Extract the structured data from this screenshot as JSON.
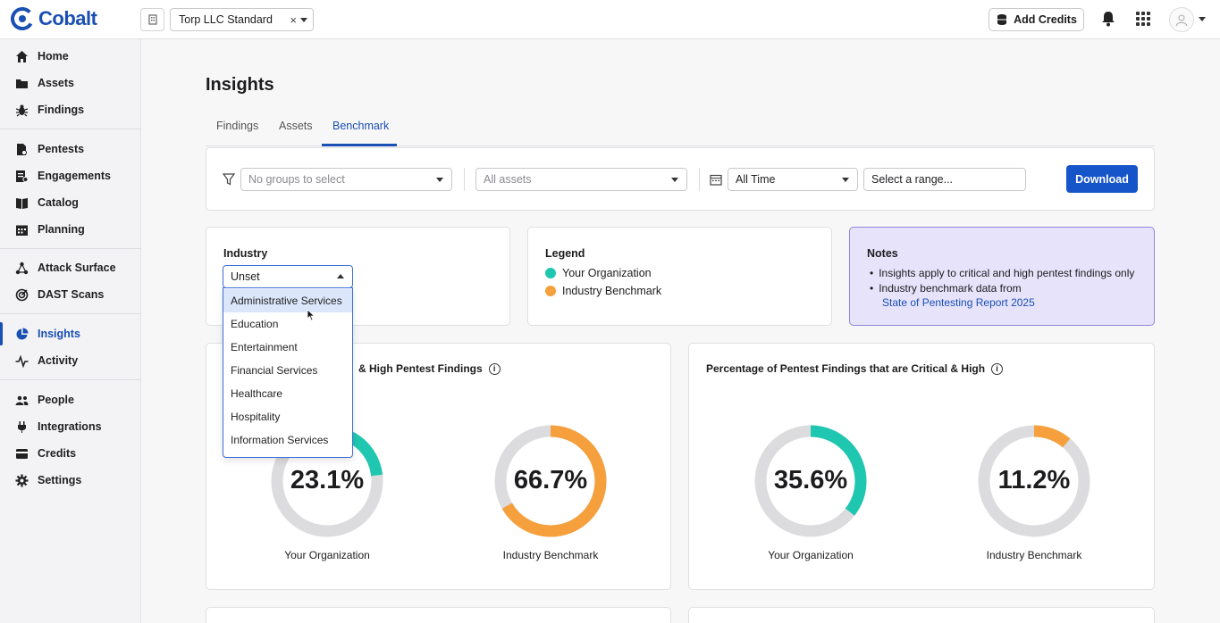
{
  "app": {
    "name": "Cobalt"
  },
  "topbar": {
    "org_selector": {
      "value": "Torp LLC Standard",
      "clear_glyph": "×"
    },
    "add_credits_label": "Add Credits"
  },
  "sidebar": {
    "groups": [
      [
        {
          "label": "Home",
          "icon": "home-icon"
        },
        {
          "label": "Assets",
          "icon": "folder-icon"
        },
        {
          "label": "Findings",
          "icon": "bug-icon"
        }
      ],
      [
        {
          "label": "Pentests",
          "icon": "pentest-icon"
        },
        {
          "label": "Engagements",
          "icon": "engagement-icon"
        },
        {
          "label": "Catalog",
          "icon": "book-icon"
        },
        {
          "label": "Planning",
          "icon": "calendar-icon"
        }
      ],
      [
        {
          "label": "Attack Surface",
          "icon": "network-icon"
        },
        {
          "label": "DAST Scans",
          "icon": "radar-icon"
        }
      ],
      [
        {
          "label": "Insights",
          "icon": "pie-chart-icon",
          "active": true
        },
        {
          "label": "Activity",
          "icon": "pulse-icon"
        }
      ],
      [
        {
          "label": "People",
          "icon": "people-icon"
        },
        {
          "label": "Integrations",
          "icon": "plug-icon"
        },
        {
          "label": "Credits",
          "icon": "coins-icon"
        },
        {
          "label": "Settings",
          "icon": "gear-icon"
        }
      ]
    ]
  },
  "page": {
    "title": "Insights",
    "tabs": [
      "Findings",
      "Assets",
      "Benchmark"
    ],
    "active_tab": "Benchmark"
  },
  "filters": {
    "groups_placeholder": "No groups to select",
    "assets_placeholder": "All assets",
    "time_value": "All Time",
    "range_placeholder": "Select a range...",
    "download_label": "Download"
  },
  "industry": {
    "title": "Industry",
    "selected": "Unset",
    "options": [
      "Administrative Services",
      "Education",
      "Entertainment",
      "Financial Services",
      "Healthcare",
      "Hospitality",
      "Information Services"
    ],
    "highlighted_index": 0
  },
  "legend": {
    "title": "Legend",
    "items": [
      {
        "label": "Your Organization",
        "color": "#1fc7b0"
      },
      {
        "label": "Industry Benchmark",
        "color": "#f5a03c"
      }
    ]
  },
  "notes": {
    "title": "Notes",
    "items": [
      "Insights apply to critical and high pentest findings only",
      "Industry benchmark data from"
    ],
    "link": "State of Pentesting Report 2025"
  },
  "charts": [
    {
      "title": "& High Pentest Findings",
      "donuts": [
        {
          "label": "Your Organization",
          "value_text": "23.1%",
          "value": 23.1,
          "color": "#1fc7b0"
        },
        {
          "label": "Industry Benchmark",
          "value_text": "66.7%",
          "value": 66.7,
          "color": "#f5a03c"
        }
      ]
    },
    {
      "title": "Percentage of Pentest Findings that are Critical & High",
      "donuts": [
        {
          "label": "Your Organization",
          "value_text": "35.6%",
          "value": 35.6,
          "color": "#1fc7b0"
        },
        {
          "label": "Industry Benchmark",
          "value_text": "11.2%",
          "value": 11.2,
          "color": "#f5a03c"
        }
      ]
    }
  ]
}
